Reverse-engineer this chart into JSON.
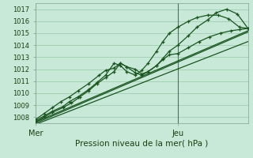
{
  "title": "",
  "xlabel": "Pression niveau de la mer( hPa )",
  "background_color": "#c8e8d8",
  "grid_color": "#98c8a8",
  "line_color": "#1a5520",
  "ylim": [
    1007.5,
    1017.5
  ],
  "yticks": [
    1008,
    1009,
    1010,
    1011,
    1012,
    1013,
    1014,
    1015,
    1016,
    1017
  ],
  "xtick_positions": [
    0.0,
    0.67
  ],
  "xtick_labels": [
    "Mer",
    "Jeu"
  ],
  "vline_x": 0.67,
  "series_wavy": [
    {
      "x": [
        0.0,
        0.04,
        0.08,
        0.12,
        0.16,
        0.2,
        0.25,
        0.3,
        0.33,
        0.37,
        0.4,
        0.43,
        0.47,
        0.5,
        0.53,
        0.57,
        0.6,
        0.63,
        0.67,
        0.72,
        0.77,
        0.82,
        0.87,
        0.92,
        0.96,
        1.0
      ],
      "y": [
        1007.8,
        1008.3,
        1008.8,
        1009.3,
        1009.7,
        1010.2,
        1010.8,
        1011.5,
        1011.9,
        1012.1,
        1012.5,
        1012.2,
        1011.7,
        1011.5,
        1011.8,
        1012.3,
        1012.8,
        1013.2,
        1013.3,
        1013.8,
        1014.3,
        1014.7,
        1015.0,
        1015.2,
        1015.3,
        1015.4
      ]
    },
    {
      "x": [
        0.0,
        0.04,
        0.08,
        0.13,
        0.16,
        0.2,
        0.25,
        0.29,
        0.33,
        0.37,
        0.4,
        0.43,
        0.47,
        0.5,
        0.53,
        0.57,
        0.6,
        0.63,
        0.67,
        0.72,
        0.76,
        0.81,
        0.86,
        0.91,
        0.96,
        1.0
      ],
      "y": [
        1007.7,
        1008.1,
        1008.5,
        1008.9,
        1009.3,
        1009.7,
        1010.3,
        1010.9,
        1011.5,
        1012.5,
        1012.3,
        1011.8,
        1011.5,
        1011.9,
        1012.5,
        1013.5,
        1014.3,
        1015.0,
        1015.5,
        1016.0,
        1016.3,
        1016.5,
        1016.5,
        1016.2,
        1015.5,
        1015.4
      ]
    },
    {
      "x": [
        0.0,
        0.04,
        0.08,
        0.13,
        0.17,
        0.21,
        0.25,
        0.29,
        0.33,
        0.37,
        0.4,
        0.43,
        0.47,
        0.5,
        0.53,
        0.57,
        0.6,
        0.63,
        0.67,
        0.72,
        0.76,
        0.81,
        0.85,
        0.9,
        0.95,
        1.0
      ],
      "y": [
        1007.6,
        1008.0,
        1008.4,
        1008.8,
        1009.2,
        1009.7,
        1010.2,
        1010.8,
        1011.3,
        1011.8,
        1012.5,
        1012.2,
        1012.0,
        1011.6,
        1011.8,
        1012.3,
        1012.9,
        1013.5,
        1014.0,
        1014.8,
        1015.5,
        1016.1,
        1016.7,
        1017.0,
        1016.6,
        1015.4
      ]
    }
  ],
  "series_smooth": [
    {
      "x": [
        0.0,
        1.0
      ],
      "y": [
        1007.6,
        1015.2
      ]
    },
    {
      "x": [
        0.0,
        1.0
      ],
      "y": [
        1007.5,
        1015.1
      ]
    },
    {
      "x": [
        0.0,
        1.0
      ],
      "y": [
        1007.4,
        1014.3
      ]
    }
  ]
}
